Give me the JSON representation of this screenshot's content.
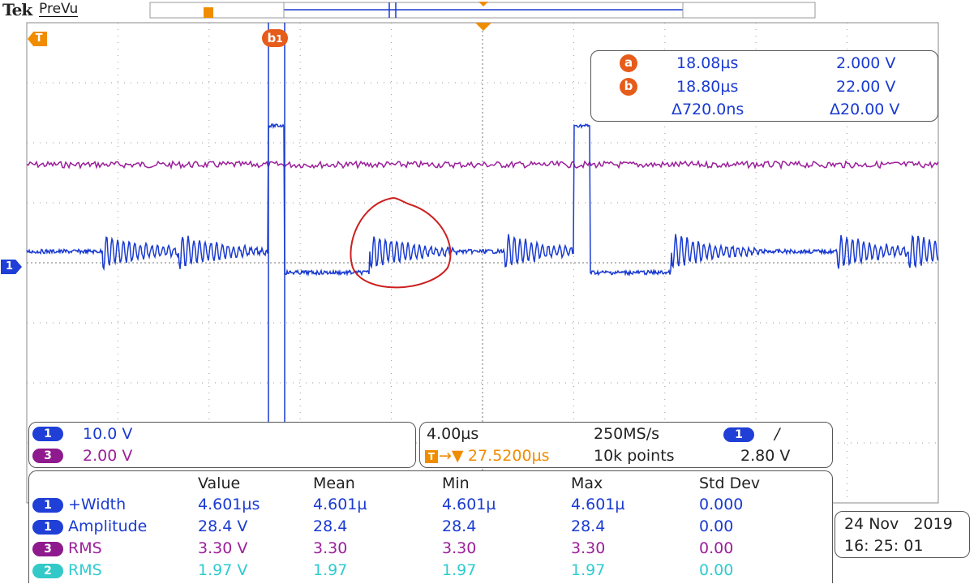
{
  "header": {
    "brand": "Tek",
    "mode": "PreVu"
  },
  "markers": {
    "trigger_marker": "T",
    "cursor_b": "b",
    "ch1_ground": "1"
  },
  "cursor_readout": {
    "a_label": "a",
    "a_time": "18.08µs",
    "a_volt": "2.000 V",
    "b_label": "b",
    "b_time": "18.80µs",
    "b_volt": "22.00 V",
    "delta_time": "Δ720.0ns",
    "delta_volt": "Δ20.00 V"
  },
  "channels": [
    {
      "num": "1",
      "scale": "10.0 V"
    },
    {
      "num": "3",
      "scale": "2.00 V"
    }
  ],
  "timebase": {
    "horizontal_scale": "4.00µs",
    "sample_rate": "250MS/s",
    "trigger_position": "27.5200µs",
    "record_length": "10k points",
    "trigger_channel": "1",
    "trigger_slope": "/",
    "trigger_level": "2.80 V"
  },
  "measurements": {
    "headers": [
      "Value",
      "Mean",
      "Min",
      "Max",
      "Std Dev"
    ],
    "rows": [
      {
        "ch": "1",
        "name": "+Width",
        "value": "4.601µs",
        "mean": "4.601µ",
        "min": "4.601µ",
        "max": "4.601µ",
        "std": "0.000"
      },
      {
        "ch": "1",
        "name": "Amplitude",
        "value": "28.4 V",
        "mean": "28.4",
        "min": "28.4",
        "max": "28.4",
        "std": "0.00"
      },
      {
        "ch": "3",
        "name": "RMS",
        "value": "3.30 V",
        "mean": "3.30",
        "min": "3.30",
        "max": "3.30",
        "std": "0.00"
      },
      {
        "ch": "2",
        "name": "RMS",
        "value": "1.97 V",
        "mean": "1.97",
        "min": "1.97",
        "max": "1.97",
        "std": "0.00"
      }
    ]
  },
  "datetime": {
    "date": "24 Nov   2019",
    "time": "16: 25: 01"
  },
  "colors": {
    "ch1": "#1a3bd1",
    "ch2": "#2ecbd0",
    "ch3": "#9b1f9b",
    "trigger": "#f08c00",
    "annotation": "#cc1f1f"
  }
}
